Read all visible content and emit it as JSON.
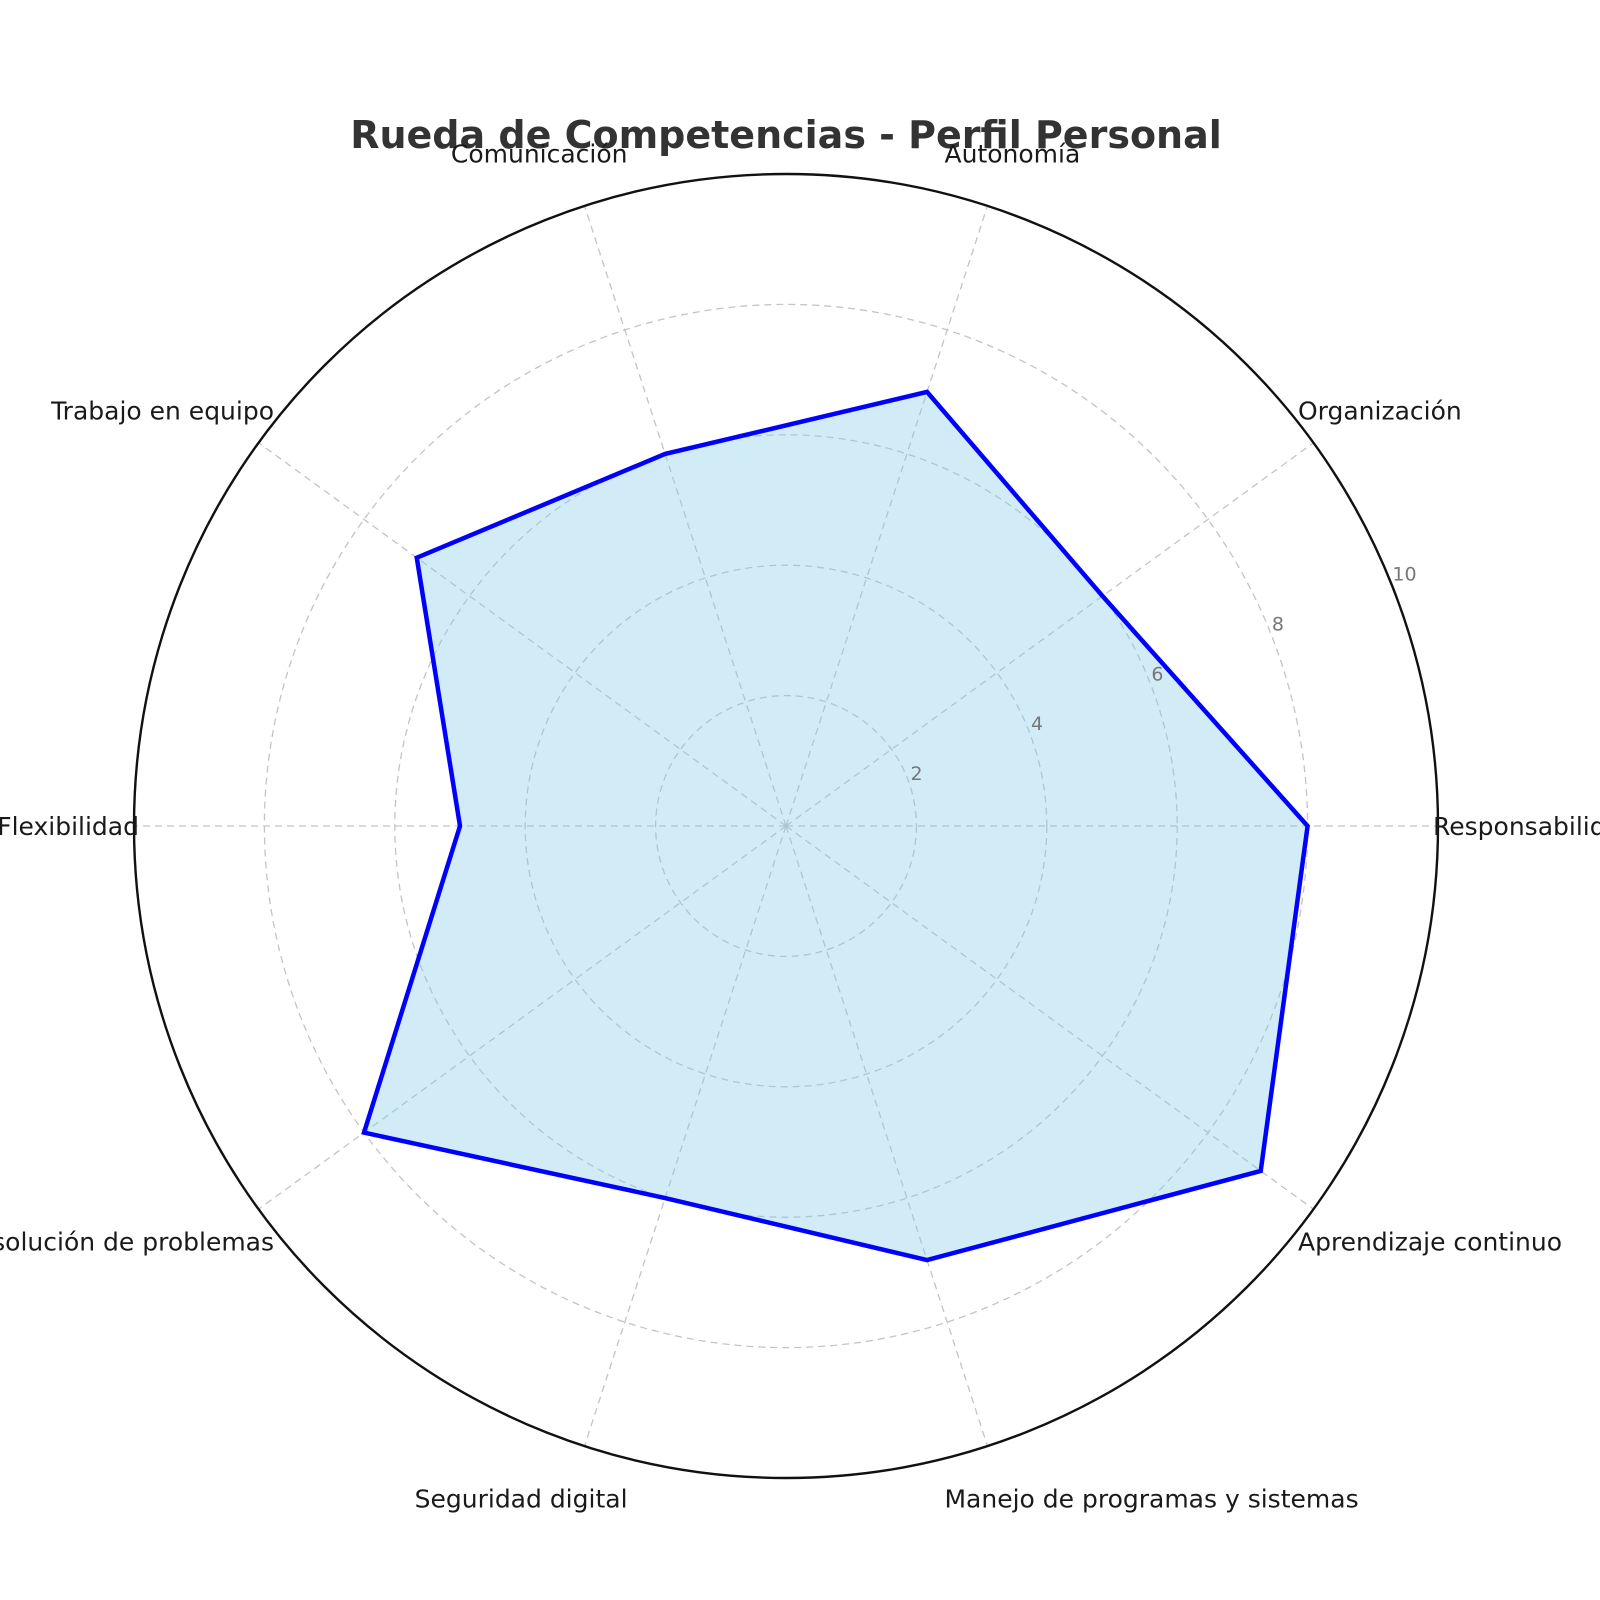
{
  "chart_data": {
    "type": "radar",
    "title": "Rueda de Competencias - Perfil Personal",
    "categories": [
      "Responsabilidad",
      "Organización",
      "Autonomía",
      "Comunicación",
      "Trabajo en equipo",
      "Flexibilidad",
      "Resolución de problemas",
      "Seguridad digital",
      "Manejo de programas y sistemas",
      "Aprendizaje continuo"
    ],
    "series": [
      {
        "values": [
          8,
          6,
          7,
          6,
          7,
          5,
          8,
          6,
          7,
          9
        ],
        "line_color": "#0000ff",
        "fill_color": "#87ceeb",
        "fill_opacity": 0.38
      }
    ],
    "rlim": [
      0,
      10
    ],
    "rticks": [
      "2",
      "4",
      "6",
      "8",
      "10"
    ],
    "grid": true
  }
}
